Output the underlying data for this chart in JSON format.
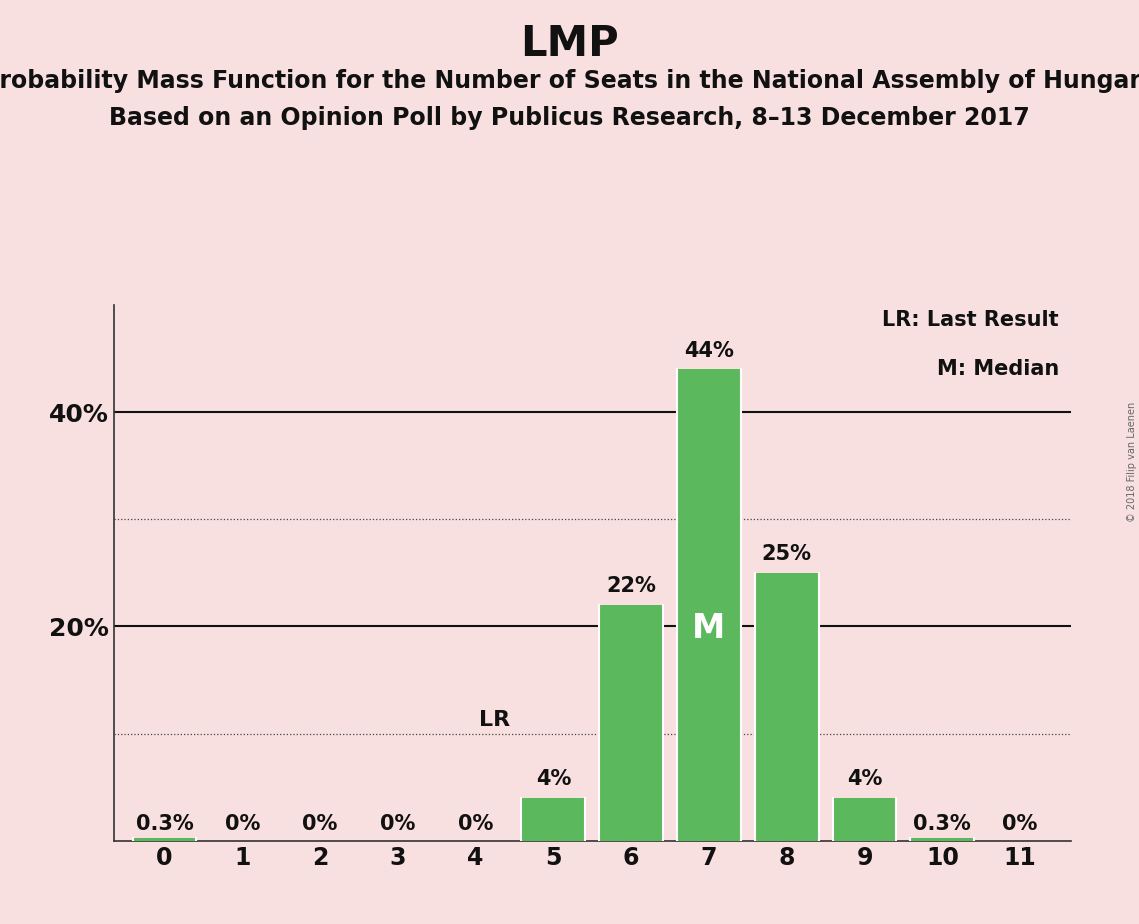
{
  "title": "LMP",
  "subtitle1": "Probability Mass Function for the Number of Seats in the National Assembly of Hungary",
  "subtitle2": "Based on an Opinion Poll by Publicus Research, 8–13 December 2017",
  "copyright": "© 2018 Filip van Laenen",
  "categories": [
    0,
    1,
    2,
    3,
    4,
    5,
    6,
    7,
    8,
    9,
    10,
    11
  ],
  "values": [
    0.3,
    0,
    0,
    0,
    0,
    4,
    22,
    44,
    25,
    4,
    0.3,
    0
  ],
  "bar_color": "#5cb85c",
  "background_color": "#f9e0e0",
  "text_color": "#111111",
  "median_bar_idx": 7,
  "lr_bar_idx": 5,
  "median_label": "M",
  "lr_label": "LR",
  "ylim": [
    0,
    50
  ],
  "dotted_grid": [
    10,
    30
  ],
  "solid_grid": [
    20,
    40
  ],
  "ytick_positions": [
    20,
    40
  ],
  "ytick_labels": [
    "20%",
    "40%"
  ],
  "legend_lr": "LR: Last Result",
  "legend_m": "M: Median",
  "bar_labels": [
    "0.3%",
    "0%",
    "0%",
    "0%",
    "0%",
    "4%",
    "22%",
    "44%",
    "25%",
    "4%",
    "0.3%",
    "0%"
  ],
  "white_label_bar_idx": 7,
  "title_fontsize": 30,
  "subtitle_fontsize": 17,
  "label_fontsize": 15,
  "tick_fontsize": 17,
  "legend_fontsize": 15,
  "median_inside_fontsize": 24
}
